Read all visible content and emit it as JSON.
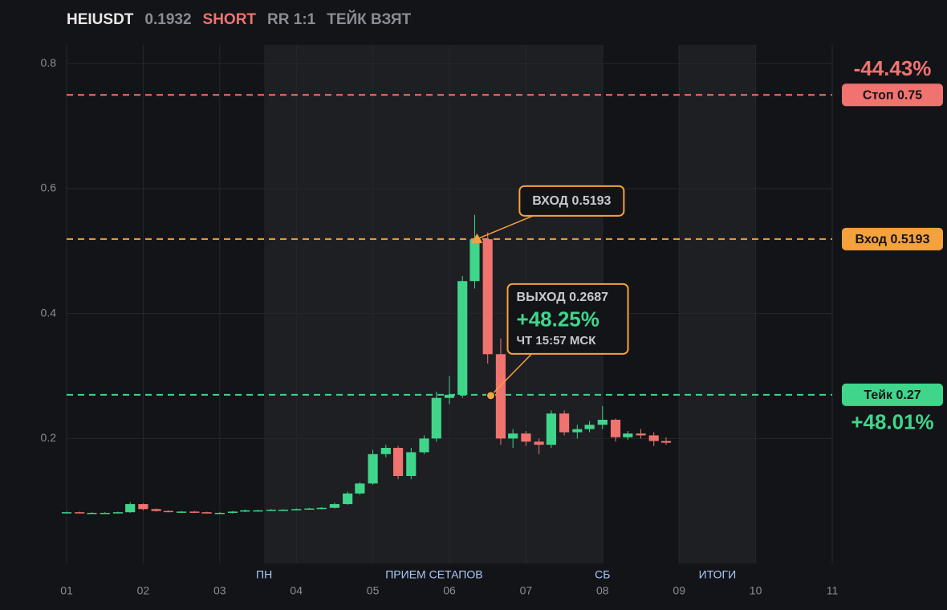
{
  "chart_data": {
    "type": "candlestick",
    "header": {
      "symbol": "HEIUSDT",
      "price": 0.1932,
      "side": "SHORT",
      "rr": "RR 1:1",
      "status": "ТЕЙК ВЗЯТ"
    },
    "colors": {
      "up": "#3fd68b",
      "down": "#f0736f"
    },
    "xlim": [
      1,
      11
    ],
    "ylim": [
      0,
      0.83
    ],
    "yticks": [
      0.2,
      0.4,
      0.6,
      0.8
    ],
    "xticks": [
      {
        "value": 1,
        "label": "01"
      },
      {
        "value": 2,
        "label": "02"
      },
      {
        "value": 3,
        "label": "03"
      },
      {
        "value": 4,
        "label": "04"
      },
      {
        "value": 5,
        "label": "05"
      },
      {
        "value": 6,
        "label": "06"
      },
      {
        "value": 7,
        "label": "07"
      },
      {
        "value": 8,
        "label": "08"
      },
      {
        "value": 9,
        "label": "09"
      },
      {
        "value": 10,
        "label": "10"
      },
      {
        "value": 11,
        "label": "11"
      }
    ],
    "grid": true,
    "shaded": [
      [
        3.58,
        8.0
      ],
      [
        9.0,
        10.0
      ]
    ],
    "sessions": [
      {
        "label": "ПН",
        "x": 3.58
      },
      {
        "label": "ПРИЕМ СЕТАПОВ",
        "x": 5.8
      },
      {
        "label": "СБ",
        "x": 8.0
      },
      {
        "label": "ИТОГИ",
        "x": 9.5
      }
    ],
    "x": [
      1.0,
      1.17,
      1.33,
      1.5,
      1.67,
      1.83,
      2.0,
      2.17,
      2.33,
      2.5,
      2.67,
      2.83,
      3.0,
      3.17,
      3.33,
      3.5,
      3.67,
      3.83,
      4.0,
      4.17,
      4.33,
      4.5,
      4.67,
      4.83,
      5.0,
      5.17,
      5.33,
      5.5,
      5.67,
      5.83,
      6.0,
      6.17,
      6.33,
      6.5,
      6.67,
      6.83,
      7.0,
      7.17,
      7.33,
      7.5,
      7.67,
      7.83,
      8.0,
      8.17,
      8.33,
      8.5,
      8.67,
      8.83
    ],
    "open": [
      0.082,
      0.082,
      0.081,
      0.081,
      0.081,
      0.082,
      0.095,
      0.087,
      0.084,
      0.083,
      0.083,
      0.082,
      0.08,
      0.081,
      0.083,
      0.085,
      0.085,
      0.086,
      0.086,
      0.087,
      0.088,
      0.089,
      0.095,
      0.112,
      0.128,
      0.175,
      0.185,
      0.14,
      0.178,
      0.2,
      0.265,
      0.27,
      0.452,
      0.519,
      0.335,
      0.2,
      0.208,
      0.195,
      0.19,
      0.24,
      0.21,
      0.215,
      0.222,
      0.23,
      0.202,
      0.208,
      0.205,
      0.196
    ],
    "high": [
      0.083,
      0.083,
      0.082,
      0.082,
      0.083,
      0.098,
      0.096,
      0.088,
      0.085,
      0.084,
      0.084,
      0.083,
      0.082,
      0.084,
      0.086,
      0.086,
      0.087,
      0.087,
      0.088,
      0.089,
      0.09,
      0.097,
      0.115,
      0.13,
      0.182,
      0.19,
      0.188,
      0.185,
      0.205,
      0.275,
      0.3,
      0.46,
      0.558,
      0.53,
      0.36,
      0.215,
      0.212,
      0.2,
      0.245,
      0.245,
      0.222,
      0.228,
      0.252,
      0.232,
      0.212,
      0.215,
      0.21,
      0.202
    ],
    "low": [
      0.081,
      0.081,
      0.08,
      0.08,
      0.08,
      0.081,
      0.085,
      0.083,
      0.082,
      0.082,
      0.081,
      0.08,
      0.079,
      0.08,
      0.082,
      0.084,
      0.084,
      0.085,
      0.085,
      0.086,
      0.087,
      0.088,
      0.094,
      0.11,
      0.126,
      0.17,
      0.135,
      0.135,
      0.175,
      0.195,
      0.255,
      0.265,
      0.44,
      0.32,
      0.19,
      0.185,
      0.188,
      0.175,
      0.185,
      0.205,
      0.2,
      0.21,
      0.215,
      0.195,
      0.198,
      0.2,
      0.188,
      0.19
    ],
    "close": [
      0.082,
      0.081,
      0.081,
      0.081,
      0.082,
      0.095,
      0.087,
      0.084,
      0.083,
      0.083,
      0.082,
      0.08,
      0.081,
      0.083,
      0.085,
      0.085,
      0.086,
      0.086,
      0.087,
      0.088,
      0.089,
      0.095,
      0.112,
      0.128,
      0.175,
      0.185,
      0.14,
      0.178,
      0.2,
      0.265,
      0.27,
      0.452,
      0.519,
      0.335,
      0.2,
      0.208,
      0.195,
      0.19,
      0.24,
      0.21,
      0.215,
      0.222,
      0.23,
      0.202,
      0.208,
      0.205,
      0.196,
      0.1932
    ],
    "levels": [
      {
        "label": "Стоп 0.75",
        "value": 0.75,
        "color": "#f0736f",
        "pct_label": "-44.43%"
      },
      {
        "label": "Вход 0.5193",
        "value": 0.5193,
        "color": "#f5a23c"
      },
      {
        "label": "Тейк 0.27",
        "value": 0.27,
        "color": "#3fd68b",
        "pct_label": "+48.01%"
      }
    ],
    "entry": {
      "text": "ВХОД 0.5193",
      "value": 0.5193,
      "x": 6.36
    },
    "exit": {
      "text": "ВЫХОД 0.2687",
      "value": 0.2687,
      "x": 6.54,
      "pnl_label": "+48.25%",
      "time": "ЧТ 15:57 МСК"
    }
  }
}
